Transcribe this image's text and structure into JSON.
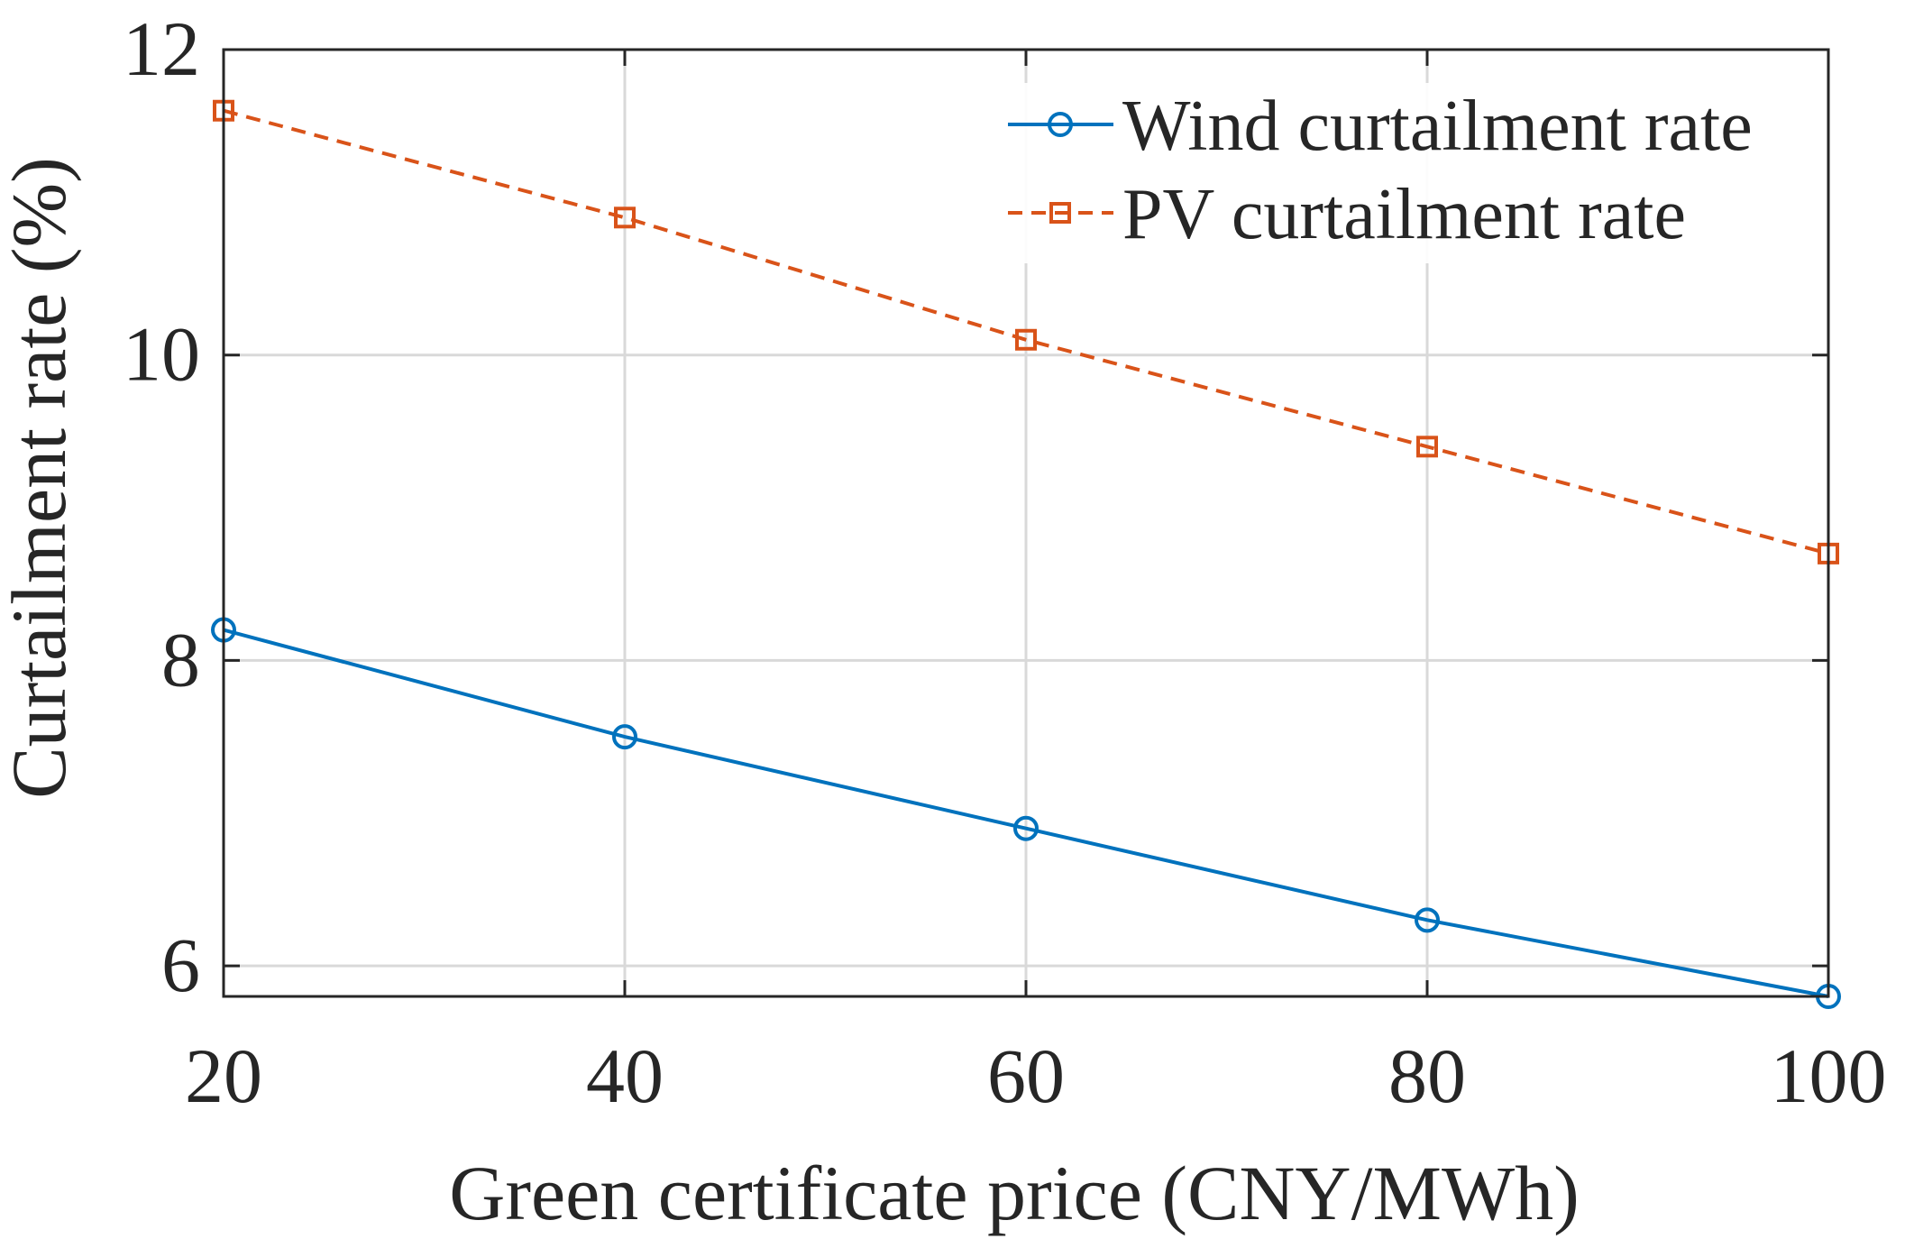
{
  "chart_data": {
    "type": "line",
    "title": "",
    "xlabel": "Green certificate price (CNY/MWh)",
    "ylabel": "Curtailment rate (%)",
    "x": [
      20,
      40,
      60,
      80,
      100
    ],
    "xlim": [
      20,
      100
    ],
    "ylim": [
      5.8,
      12
    ],
    "xticks": [
      20,
      40,
      60,
      80,
      100
    ],
    "yticks": [
      6,
      8,
      10,
      12
    ],
    "xtick_labels": [
      "20",
      "40",
      "60",
      "80",
      "100"
    ],
    "ytick_labels": [
      "6",
      "8",
      "10",
      "12"
    ],
    "grid": true,
    "legend_position": "top-right",
    "series": [
      {
        "name": "Wind curtailment rate",
        "color": "#0072BD",
        "line_style": "solid",
        "marker": "circle",
        "values": [
          8.2,
          7.5,
          6.9,
          6.3,
          5.8
        ]
      },
      {
        "name": "PV curtailment rate",
        "color": "#D95319",
        "line_style": "dashed",
        "marker": "square",
        "values": [
          11.6,
          10.9,
          10.1,
          9.4,
          8.7
        ]
      }
    ]
  }
}
